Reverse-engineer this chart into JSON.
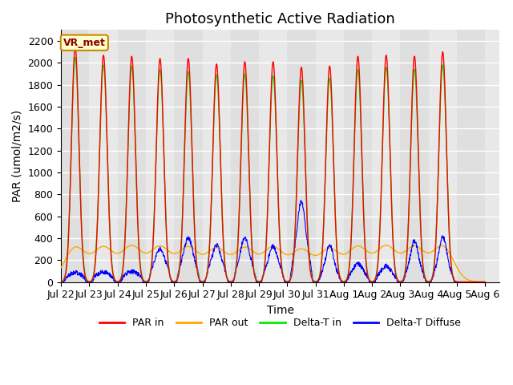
{
  "title": "Photosynthetic Active Radiation",
  "ylabel": "PAR (umol/m2/s)",
  "xlabel": "Time",
  "annotation": "VR_met",
  "ylim": [
    0,
    2300
  ],
  "yticks": [
    0,
    200,
    400,
    600,
    800,
    1000,
    1200,
    1400,
    1600,
    1800,
    2000,
    2200
  ],
  "xtick_labels": [
    "Jul 22",
    "Jul 23",
    "Jul 24",
    "Jul 25",
    "Jul 26",
    "Jul 27",
    "Jul 28",
    "Jul 29",
    "Jul 30",
    "Jul 31",
    "Aug 1",
    "Aug 2",
    "Aug 3",
    "Aug 4",
    "Aug 5",
    "Aug 6"
  ],
  "colors": {
    "PAR_in": "#ff0000",
    "PAR_out": "#ffa500",
    "Delta_T_in": "#00ee00",
    "Delta_T_Diffuse": "#0000ff"
  },
  "legend_labels": [
    "PAR in",
    "PAR out",
    "Delta-T in",
    "Delta-T Diffuse"
  ],
  "background_color": "#e8e8e8",
  "annotation_bg": "#ffffcc",
  "annotation_border": "#cc8800",
  "grid_color": "#ffffff",
  "title_fontsize": 13,
  "label_fontsize": 10,
  "tick_fontsize": 9,
  "peaks_PAR_in": [
    2150,
    2070,
    2060,
    2040,
    2040,
    1990,
    2010,
    2010,
    1960,
    1970,
    2060,
    2070,
    2060,
    2100
  ],
  "peaks_PAR_out": [
    310,
    305,
    315,
    310,
    305,
    295,
    300,
    305,
    285,
    290,
    310,
    315,
    310,
    320
  ],
  "peaks_Delta_T_in": [
    2050,
    1980,
    1970,
    1940,
    1920,
    1890,
    1900,
    1880,
    1840,
    1860,
    1940,
    1960,
    1940,
    1980
  ],
  "peaks_Diffuse": [
    80,
    85,
    90,
    300,
    400,
    330,
    400,
    320,
    730,
    330,
    160,
    140,
    370,
    410
  ],
  "diffuse_base": [
    60,
    65,
    65,
    150,
    170,
    140,
    160,
    130,
    250,
    80,
    80,
    70,
    90,
    100
  ]
}
